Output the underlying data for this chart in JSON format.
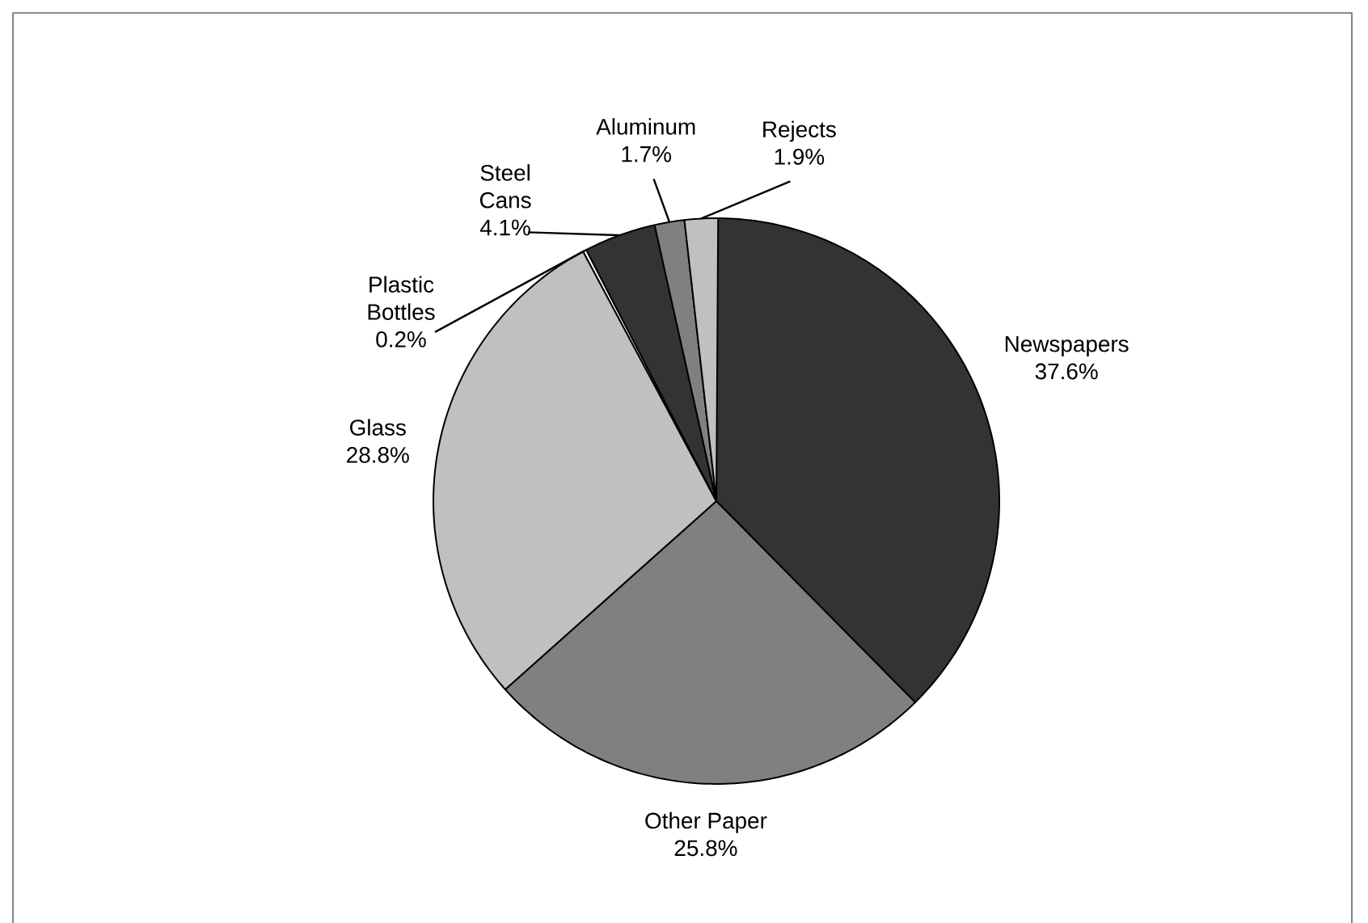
{
  "chart_data": {
    "type": "pie",
    "categories": [
      "Newspapers",
      "Other Paper",
      "Glass",
      "Plastic Bottles",
      "Steel Cans",
      "Aluminum",
      "Rejects"
    ],
    "values": [
      37.6,
      25.8,
      28.8,
      0.2,
      4.1,
      1.7,
      1.9
    ],
    "value_labels": [
      "37.6%",
      "25.8%",
      "28.8%",
      "0.2%",
      "4.1%",
      "1.7%",
      "1.9%"
    ],
    "colors": [
      "#333333",
      "#808080",
      "#c0c0c0",
      "#ffffff",
      "#333333",
      "#808080",
      "#c0c0c0"
    ]
  }
}
